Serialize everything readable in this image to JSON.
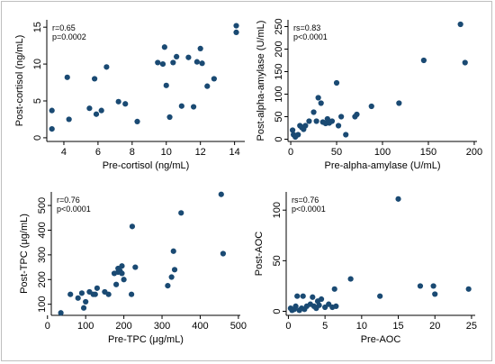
{
  "figure": {
    "point_color": "#1a4a73",
    "background": "#ffffff",
    "border_color": "#bfbfbf"
  },
  "chart_data": [
    {
      "type": "scatter",
      "xlabel": "Pre-cortisol (ng/mL)",
      "ylabel": "Post-cortisol (ng/mL)",
      "xlim": [
        3,
        14.6
      ],
      "ylim": [
        -0.5,
        16
      ],
      "xticks": [
        4,
        6,
        8,
        10,
        12,
        14
      ],
      "yticks": [
        0,
        5,
        10,
        15
      ],
      "annotation": [
        "r=0.65",
        "p=0.0002"
      ],
      "points": [
        [
          3.3,
          3.7
        ],
        [
          3.3,
          1.2
        ],
        [
          4.2,
          8.2
        ],
        [
          4.3,
          2.5
        ],
        [
          5.5,
          4.0
        ],
        [
          5.8,
          8.0
        ],
        [
          5.9,
          3.2
        ],
        [
          6.2,
          3.7
        ],
        [
          6.5,
          9.6
        ],
        [
          7.2,
          4.9
        ],
        [
          7.6,
          4.6
        ],
        [
          8.3,
          2.2
        ],
        [
          9.5,
          10.2
        ],
        [
          9.8,
          10.0
        ],
        [
          9.9,
          12.3
        ],
        [
          10.0,
          7.1
        ],
        [
          10.2,
          2.8
        ],
        [
          10.4,
          10.2
        ],
        [
          10.6,
          11.0
        ],
        [
          10.9,
          4.3
        ],
        [
          11.3,
          10.9
        ],
        [
          11.6,
          4.2
        ],
        [
          11.8,
          10.3
        ],
        [
          12.0,
          12.1
        ],
        [
          12.1,
          10.1
        ],
        [
          12.4,
          7.0
        ],
        [
          12.8,
          8.0
        ],
        [
          14.1,
          15.2
        ],
        [
          14.1,
          14.3
        ]
      ]
    },
    {
      "type": "scatter",
      "xlabel": "Pre-alpha-amylase (U/mL)",
      "ylabel": "Post-alpha-amylase (U/mL)",
      "xlim": [
        -3,
        203
      ],
      "ylim": [
        -5,
        265
      ],
      "xticks": [
        0,
        50,
        100,
        150,
        200
      ],
      "yticks": [
        0,
        50,
        100,
        150,
        200,
        250
      ],
      "annotation": [
        "rs=0.83",
        "p<0.0001"
      ],
      "points": [
        [
          2,
          20
        ],
        [
          3,
          10
        ],
        [
          5,
          5
        ],
        [
          8,
          10
        ],
        [
          10,
          30
        ],
        [
          12,
          26
        ],
        [
          14,
          22
        ],
        [
          16,
          30
        ],
        [
          20,
          40
        ],
        [
          25,
          60
        ],
        [
          28,
          40
        ],
        [
          30,
          92
        ],
        [
          33,
          80
        ],
        [
          35,
          38
        ],
        [
          38,
          35
        ],
        [
          40,
          45
        ],
        [
          42,
          36
        ],
        [
          45,
          40
        ],
        [
          50,
          125
        ],
        [
          52,
          30
        ],
        [
          55,
          50
        ],
        [
          60,
          10
        ],
        [
          70,
          50
        ],
        [
          72,
          55
        ],
        [
          88,
          73
        ],
        [
          118,
          80
        ],
        [
          145,
          175
        ],
        [
          185,
          255
        ],
        [
          190,
          170
        ]
      ]
    },
    {
      "type": "scatter",
      "xlabel": "Pre-TPC (μg/mL)",
      "ylabel": "Post-TPC (μg/mL)",
      "xlim": [
        10,
        505
      ],
      "ylim": [
        55,
        555
      ],
      "xticks": [
        0,
        100,
        200,
        300,
        400,
        500
      ],
      "yticks": [
        100,
        200,
        300,
        400,
        500
      ],
      "annotation": [
        "r=0.76",
        "p<0.0001"
      ],
      "points": [
        [
          35,
          65
        ],
        [
          60,
          140
        ],
        [
          80,
          125
        ],
        [
          90,
          145
        ],
        [
          95,
          85
        ],
        [
          100,
          110
        ],
        [
          110,
          150
        ],
        [
          120,
          140
        ],
        [
          125,
          140
        ],
        [
          130,
          165
        ],
        [
          150,
          150
        ],
        [
          160,
          140
        ],
        [
          175,
          225
        ],
        [
          180,
          180
        ],
        [
          185,
          230
        ],
        [
          185,
          245
        ],
        [
          190,
          235
        ],
        [
          195,
          255
        ],
        [
          195,
          225
        ],
        [
          200,
          200
        ],
        [
          220,
          140
        ],
        [
          222,
          415
        ],
        [
          230,
          250
        ],
        [
          315,
          175
        ],
        [
          325,
          210
        ],
        [
          330,
          315
        ],
        [
          333,
          240
        ],
        [
          350,
          470
        ],
        [
          455,
          545
        ],
        [
          460,
          305
        ]
      ]
    },
    {
      "type": "scatter",
      "xlabel": "Pre-AOC",
      "ylabel": "Post-AOC",
      "xlim": [
        -0.3,
        25.5
      ],
      "ylim": [
        -4,
        118
      ],
      "xticks": [
        0,
        5,
        10,
        15,
        20,
        25
      ],
      "yticks": [
        0,
        50,
        100
      ],
      "annotation": [
        "rs=0.76",
        "p<0.0001"
      ],
      "points": [
        [
          0.3,
          3
        ],
        [
          0.5,
          1
        ],
        [
          0.8,
          2
        ],
        [
          1.0,
          5
        ],
        [
          1.2,
          15
        ],
        [
          1.5,
          1
        ],
        [
          1.8,
          3
        ],
        [
          2.0,
          15
        ],
        [
          2.2,
          2
        ],
        [
          2.5,
          5
        ],
        [
          3.0,
          7
        ],
        [
          3.3,
          14
        ],
        [
          3.5,
          5
        ],
        [
          3.8,
          3
        ],
        [
          4.0,
          10
        ],
        [
          4.2,
          6
        ],
        [
          4.5,
          12
        ],
        [
          5.0,
          4
        ],
        [
          5.5,
          7
        ],
        [
          6.0,
          4
        ],
        [
          6.3,
          22
        ],
        [
          6.5,
          5
        ],
        [
          8.5,
          32
        ],
        [
          12.5,
          15
        ],
        [
          15.0,
          111
        ],
        [
          18.0,
          25
        ],
        [
          19.8,
          25
        ],
        [
          20.0,
          17
        ],
        [
          24.6,
          22
        ]
      ]
    }
  ]
}
